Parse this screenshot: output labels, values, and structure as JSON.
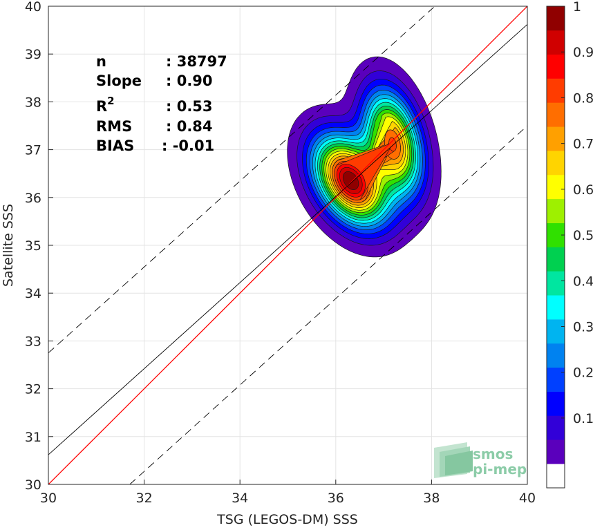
{
  "chart_data": {
    "type": "heatmap",
    "subtype": "density-scatter",
    "xlabel": "TSG (LEGOS-DM) SSS",
    "ylabel": "Satellite SSS",
    "xlim": [
      30,
      40
    ],
    "ylim": [
      30,
      40
    ],
    "xticks": [
      30,
      32,
      34,
      36,
      38,
      40
    ],
    "yticks": [
      30,
      31,
      32,
      33,
      34,
      35,
      36,
      37,
      38,
      39,
      40
    ],
    "grid": true,
    "stats": [
      {
        "label": "n",
        "value": ": 38797"
      },
      {
        "label": "Slope",
        "value": ": 0.90"
      },
      {
        "label": "R",
        "sup": "2",
        "value": ": 0.53"
      },
      {
        "label": "RMS",
        "value": ": 0.84"
      },
      {
        "label": "BIAS",
        "value": ": -0.01"
      }
    ],
    "lines": [
      {
        "kind": "identity",
        "color": "#ff0000",
        "points": [
          [
            30,
            30
          ],
          [
            40,
            40
          ]
        ]
      },
      {
        "kind": "fit",
        "color": "#000000",
        "points": [
          [
            30,
            30.62
          ],
          [
            40,
            39.62
          ]
        ]
      },
      {
        "kind": "upper-bound",
        "color": "#000000",
        "dashed": true,
        "points": [
          [
            30,
            32.75
          ],
          [
            38.07,
            40
          ]
        ]
      },
      {
        "kind": "lower-bound",
        "color": "#000000",
        "dashed": true,
        "points": [
          [
            31.7,
            30
          ],
          [
            40,
            37.5
          ]
        ]
      }
    ],
    "density_peaks": [
      {
        "x": 36.3,
        "y": 36.35,
        "value": 1.0
      },
      {
        "x": 37.2,
        "y": 37.15,
        "value": 0.8
      }
    ],
    "colorbar": {
      "min": 0,
      "max": 1,
      "ticks": [
        0.1,
        0.2,
        0.3,
        0.4,
        0.5,
        0.6,
        0.7,
        0.8,
        0.9,
        1
      ],
      "tick_labels": [
        "0.1",
        "0.2",
        "0.3",
        "0.4",
        "0.5",
        "0.6",
        "0.7",
        "0.8",
        "0.9",
        "1"
      ],
      "colors": [
        "#ffffff",
        "#5a00bc",
        "#3200d8",
        "#0000ff",
        "#0040ff",
        "#0082f0",
        "#00b4f0",
        "#00ffff",
        "#00e6a0",
        "#00d050",
        "#30e000",
        "#9ef000",
        "#ffff00",
        "#ffd400",
        "#ffa000",
        "#ff6e00",
        "#ff3c00",
        "#ff0000",
        "#d00000",
        "#900000"
      ]
    }
  },
  "logo": {
    "line1": "smos",
    "line2": "pi-mep"
  }
}
